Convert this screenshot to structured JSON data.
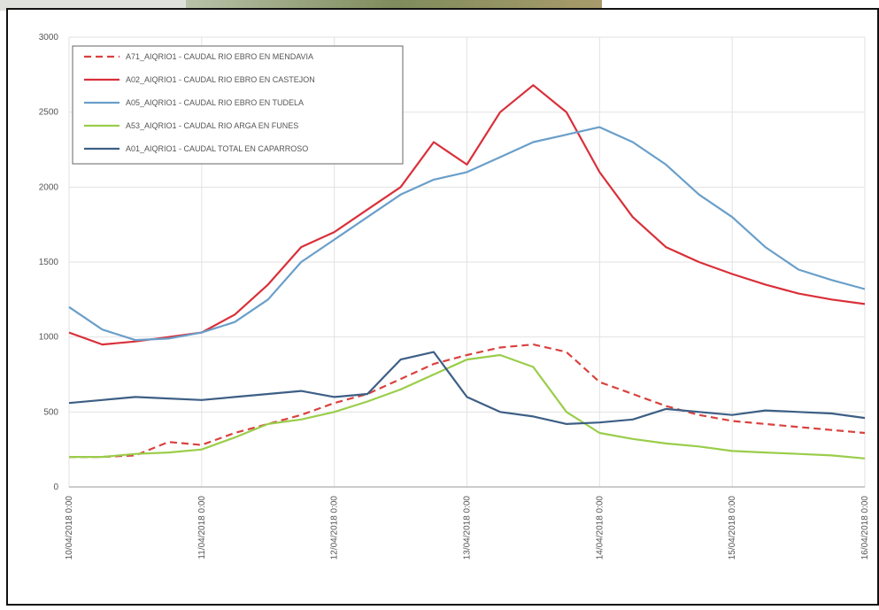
{
  "chart_data": {
    "type": "line",
    "x": [
      "2018-04-10T00:00",
      "2018-04-10T06:00",
      "2018-04-10T12:00",
      "2018-04-10T18:00",
      "2018-04-11T00:00",
      "2018-04-11T06:00",
      "2018-04-11T12:00",
      "2018-04-11T18:00",
      "2018-04-12T00:00",
      "2018-04-12T06:00",
      "2018-04-12T12:00",
      "2018-04-12T18:00",
      "2018-04-13T00:00",
      "2018-04-13T06:00",
      "2018-04-13T12:00",
      "2018-04-13T18:00",
      "2018-04-14T00:00",
      "2018-04-14T06:00",
      "2018-04-14T12:00",
      "2018-04-14T18:00",
      "2018-04-15T00:00",
      "2018-04-15T06:00",
      "2018-04-15T12:00",
      "2018-04-15T18:00",
      "2018-04-16T00:00"
    ],
    "series": [
      {
        "name": "A71_AIQRIO1 - CAUDAL RIO EBRO EN MENDAVIA",
        "color": "#d9423f",
        "line_style": "dashed",
        "values": [
          200,
          200,
          210,
          300,
          280,
          360,
          420,
          480,
          560,
          620,
          720,
          820,
          880,
          930,
          950,
          900,
          700,
          620,
          540,
          480,
          440,
          420,
          400,
          380,
          360
        ]
      },
      {
        "name": "A02_AIQRIO1 - CAUDAL RIO EBRO EN CASTEJON",
        "color": "#d9303a",
        "line_style": "solid",
        "values": [
          1030,
          950,
          970,
          1000,
          1030,
          1150,
          1350,
          1600,
          1700,
          1850,
          2000,
          2300,
          2150,
          2500,
          2680,
          2500,
          2100,
          1800,
          1600,
          1500,
          1420,
          1350,
          1290,
          1250,
          1220
        ]
      },
      {
        "name": "A05_AIQRIO1 - CAUDAL RIO EBRO EN TUDELA",
        "color": "#6a9fc9",
        "line_style": "solid",
        "values": [
          1200,
          1050,
          980,
          990,
          1030,
          1100,
          1250,
          1500,
          1650,
          1800,
          1950,
          2050,
          2100,
          2200,
          2300,
          2350,
          2400,
          2300,
          2150,
          1950,
          1800,
          1600,
          1450,
          1380,
          1320
        ]
      },
      {
        "name": "A53_AIQRIO1 - CAUDAL RIO ARGA EN FUNES",
        "color": "#9acd4a",
        "line_style": "solid",
        "values": [
          200,
          200,
          220,
          230,
          250,
          330,
          420,
          450,
          500,
          570,
          650,
          750,
          850,
          880,
          800,
          500,
          360,
          320,
          290,
          270,
          240,
          230,
          220,
          210,
          190
        ]
      },
      {
        "name": "A01_AIQRIO1 - CAUDAL TOTAL EN CAPARROSO",
        "color": "#3d5f85",
        "line_style": "solid",
        "values": [
          560,
          580,
          600,
          590,
          580,
          600,
          620,
          640,
          600,
          620,
          850,
          900,
          600,
          500,
          470,
          420,
          430,
          450,
          520,
          500,
          480,
          510,
          500,
          490,
          460
        ]
      }
    ],
    "xlim": [
      "2018-04-10T00:00",
      "2018-04-16T00:00"
    ],
    "xticks": [
      {
        "value": "2018-04-10T00:00",
        "label": "10/04/2018 0:00"
      },
      {
        "value": "2018-04-11T00:00",
        "label": "11/04/2018 0:00"
      },
      {
        "value": "2018-04-12T00:00",
        "label": "12/04/2018 0:00"
      },
      {
        "value": "2018-04-13T00:00",
        "label": "13/04/2018 0:00"
      },
      {
        "value": "2018-04-14T00:00",
        "label": "14/04/2018 0:00"
      },
      {
        "value": "2018-04-15T00:00",
        "label": "15/04/2018 0:00"
      },
      {
        "value": "2018-04-16T00:00",
        "label": "16/04/2018 0:00"
      }
    ],
    "ylim": [
      0,
      3000
    ],
    "yticks": [
      0,
      500,
      1000,
      1500,
      2000,
      2500,
      3000
    ],
    "grid": true,
    "legend": "top-left"
  }
}
